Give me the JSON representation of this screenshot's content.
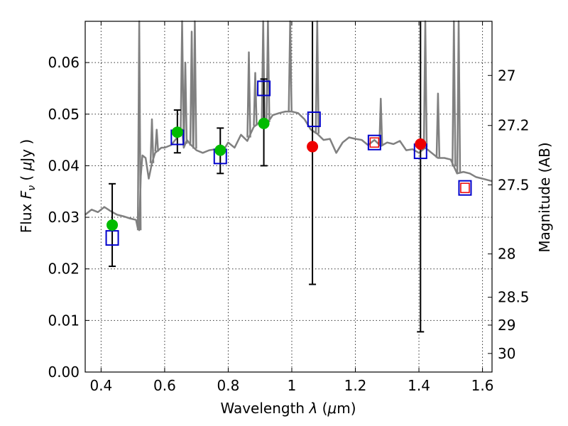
{
  "chart_data": {
    "type": "scatter",
    "xlabel_parts": {
      "text": "Wavelength  ",
      "symbol": "λ",
      "unit_open": " (",
      "mu": "μ",
      "unit_rest": "m)"
    },
    "ylabel_parts": {
      "text": "Flux  ",
      "symbol": "F",
      "sub": "ν",
      "unit_open": "  ( ",
      "mu": "μ",
      "unit_rest": "Jy )"
    },
    "y2label": "Magnitude (AB)",
    "xlim": [
      0.35,
      1.63
    ],
    "ylim": [
      0.0,
      0.068
    ],
    "grid": true,
    "xticks": [
      0.4,
      0.6,
      0.8,
      1.0,
      1.2,
      1.4,
      1.6
    ],
    "xtick_labels": [
      "0.4",
      "0.6",
      "0.8",
      "1",
      "1.2",
      "1.4",
      "1.6"
    ],
    "yticks": [
      0.0,
      0.01,
      0.02,
      0.03,
      0.04,
      0.05,
      0.06
    ],
    "ytick_labels": [
      "0.00",
      "0.01",
      "0.02",
      "0.03",
      "0.04",
      "0.05",
      "0.06"
    ],
    "mag_ticks": [
      {
        "label": "27",
        "flux": 0.0575
      },
      {
        "label": "27.2",
        "flux": 0.0478
      },
      {
        "label": "27.5",
        "flux": 0.0363
      },
      {
        "label": "28",
        "flux": 0.0229
      },
      {
        "label": "28.5",
        "flux": 0.0145
      },
      {
        "label": "29",
        "flux": 0.0091
      },
      {
        "label": "30",
        "flux": 0.0036
      }
    ],
    "colors": {
      "model": "#808080",
      "green": "#00bb00",
      "red": "#ee0000",
      "blue": "#0000cc",
      "errorbar": "#000000"
    },
    "series": [
      {
        "marker": "line",
        "x": [
          0.35,
          0.37,
          0.39,
          0.41,
          0.43,
          0.45,
          0.47,
          0.49,
          0.51,
          0.515,
          0.52,
          0.525,
          0.53,
          0.54,
          0.55,
          0.56,
          0.57,
          0.58,
          0.59,
          0.6,
          0.62,
          0.64,
          0.655,
          0.66,
          0.67,
          0.68,
          0.7,
          0.72,
          0.74,
          0.76,
          0.78,
          0.8,
          0.82,
          0.84,
          0.86,
          0.88,
          0.9,
          0.92,
          0.94,
          0.96,
          0.98,
          1.0,
          1.02,
          1.04,
          1.06,
          1.08,
          1.1,
          1.12,
          1.14,
          1.16,
          1.18,
          1.2,
          1.22,
          1.24,
          1.26,
          1.28,
          1.3,
          1.32,
          1.34,
          1.36,
          1.38,
          1.4,
          1.42,
          1.44,
          1.46,
          1.48,
          1.5,
          1.52,
          1.54,
          1.56,
          1.58,
          1.6,
          1.63
        ],
        "y": [
          0.0305,
          0.0315,
          0.031,
          0.032,
          0.0312,
          0.0305,
          0.0302,
          0.0298,
          0.0295,
          0.028,
          0.0275,
          0.038,
          0.042,
          0.0415,
          0.0375,
          0.0405,
          0.0425,
          0.043,
          0.0435,
          0.0435,
          0.044,
          0.0455,
          0.047,
          0.0435,
          0.045,
          0.0442,
          0.043,
          0.0425,
          0.043,
          0.0432,
          0.0425,
          0.0445,
          0.0435,
          0.046,
          0.0448,
          0.0475,
          0.0485,
          0.048,
          0.0498,
          0.0502,
          0.0505,
          0.0505,
          0.0502,
          0.049,
          0.047,
          0.0462,
          0.045,
          0.0452,
          0.0425,
          0.0445,
          0.0455,
          0.0452,
          0.045,
          0.044,
          0.045,
          0.0438,
          0.0445,
          0.0442,
          0.0448,
          0.043,
          0.0432,
          0.0425,
          0.0435,
          0.0425,
          0.0415,
          0.0415,
          0.0412,
          0.0385,
          0.0388,
          0.0385,
          0.0378,
          0.0375,
          0.037
        ]
      },
      {
        "marker": "line-spikes",
        "spikes": [
          {
            "x": 0.52,
            "top": 0.068
          },
          {
            "x": 0.56,
            "top": 0.049
          },
          {
            "x": 0.575,
            "top": 0.047
          },
          {
            "x": 0.655,
            "top": 0.068
          },
          {
            "x": 0.665,
            "top": 0.06
          },
          {
            "x": 0.685,
            "top": 0.066
          },
          {
            "x": 0.695,
            "top": 0.068
          },
          {
            "x": 0.865,
            "top": 0.062
          },
          {
            "x": 0.885,
            "top": 0.058
          },
          {
            "x": 0.91,
            "top": 0.068
          },
          {
            "x": 0.925,
            "top": 0.068
          },
          {
            "x": 0.995,
            "top": 0.068
          },
          {
            "x": 1.08,
            "top": 0.068
          },
          {
            "x": 1.28,
            "top": 0.053
          },
          {
            "x": 1.42,
            "top": 0.068
          },
          {
            "x": 1.46,
            "top": 0.054
          },
          {
            "x": 1.51,
            "top": 0.068
          },
          {
            "x": 1.525,
            "top": 0.068
          }
        ]
      },
      {
        "marker": "filled-circle",
        "color": "green",
        "x": [
          0.435,
          0.64,
          0.775,
          0.912
        ],
        "y": [
          0.0285,
          0.0465,
          0.043,
          0.0482
        ]
      },
      {
        "marker": "filled-circle",
        "color": "red",
        "x": [
          1.065,
          1.405
        ],
        "y": [
          0.0437,
          0.0442
        ]
      },
      {
        "marker": "open-square-blue",
        "x": [
          0.435,
          0.64,
          0.775,
          0.912,
          1.07,
          1.26,
          1.405,
          1.545
        ],
        "y": [
          0.026,
          0.0455,
          0.0418,
          0.055,
          0.049,
          0.0445,
          0.0428,
          0.0357
        ]
      },
      {
        "marker": "open-square-red",
        "x": [
          1.26,
          1.545
        ],
        "y": [
          0.0445,
          0.0357
        ]
      },
      {
        "marker": "errorbar",
        "x": [
          0.435,
          0.64,
          0.775,
          0.912,
          1.065,
          1.405
        ],
        "low": [
          0.0205,
          0.0425,
          0.0385,
          0.04,
          0.017,
          0.0078
        ],
        "high": [
          0.0365,
          0.0508,
          0.0473,
          0.0568,
          0.07,
          0.07
        ]
      }
    ]
  }
}
